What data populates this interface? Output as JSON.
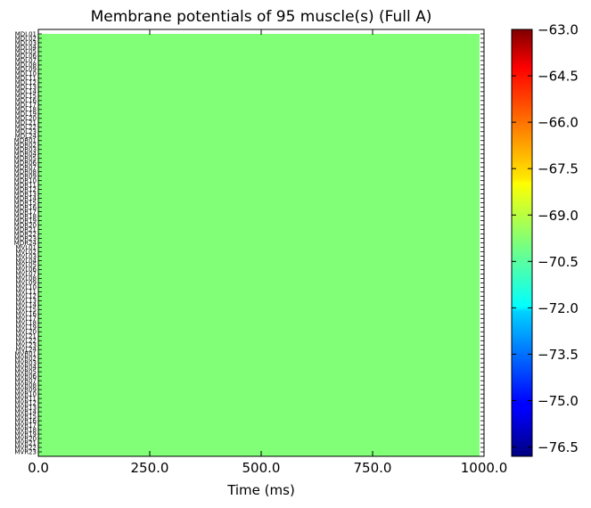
{
  "chart_data": {
    "type": "heatmap",
    "title": "Membrane potentials of 95 muscle(s) (Full A)",
    "xlabel": "Time (ms)",
    "ylabel": "",
    "xlim": [
      0,
      1000
    ],
    "x_ticks": [
      "0.0",
      "250.0",
      "500.0",
      "750.0",
      "1000.0"
    ],
    "x_tick_values": [
      0,
      250,
      500,
      750,
      1000
    ],
    "data_x_end": 990,
    "rows": [
      "MDL01",
      "MDL02",
      "MDL03",
      "MDL04",
      "MDL05",
      "MDL06",
      "MDL07",
      "MDL08",
      "MDL09",
      "MDL10",
      "MDL11",
      "MDL12",
      "MDL13",
      "MDL14",
      "MDL15",
      "MDL16",
      "MDL17",
      "MDL18",
      "MDL19",
      "MDL20",
      "MDL21",
      "MDL22",
      "MDL23",
      "MDL24",
      "MDR01",
      "MDR02",
      "MDR03",
      "MDR04",
      "MDR05",
      "MDR06",
      "MDR07",
      "MDR08",
      "MDR09",
      "MDR10",
      "MDR11",
      "MDR12",
      "MDR13",
      "MDR14",
      "MDR15",
      "MDR16",
      "MDR17",
      "MDR18",
      "MDR19",
      "MDR20",
      "MDR21",
      "MDR22",
      "MDR23",
      "MDR24",
      "MVL01",
      "MVL02",
      "MVL03",
      "MVL04",
      "MVL05",
      "MVL06",
      "MVL07",
      "MVL08",
      "MVL09",
      "MVL10",
      "MVL11",
      "MVL12",
      "MVL13",
      "MVL14",
      "MVL15",
      "MVL16",
      "MVL17",
      "MVL18",
      "MVL19",
      "MVL20",
      "MVL21",
      "MVL22",
      "MVL23",
      "MVL24",
      "MVR01",
      "MVR02",
      "MVR03",
      "MVR04",
      "MVR05",
      "MVR06",
      "MVR07",
      "MVR08",
      "MVR09",
      "MVR10",
      "MVR11",
      "MVR12",
      "MVR13",
      "MVR14",
      "MVR15",
      "MVR16",
      "MVR17",
      "MVR18",
      "MVR19",
      "MVR20",
      "MVR21",
      "MVR22",
      "MVR23"
    ],
    "values_uniform": -69.7,
    "cell_color": "#80ff77",
    "colorbar": {
      "min": -76.8,
      "max": -63.0,
      "ticks": [
        "-63.0",
        "-64.5",
        "-66.0",
        "-67.5",
        "-69.0",
        "-70.5",
        "-72.0",
        "-73.5",
        "-75.0",
        "-76.5"
      ],
      "tick_values": [
        -63.0,
        -64.5,
        -66.0,
        -67.5,
        -69.0,
        -70.5,
        -72.0,
        -73.5,
        -75.0,
        -76.5
      ],
      "colormap": "jet"
    }
  }
}
